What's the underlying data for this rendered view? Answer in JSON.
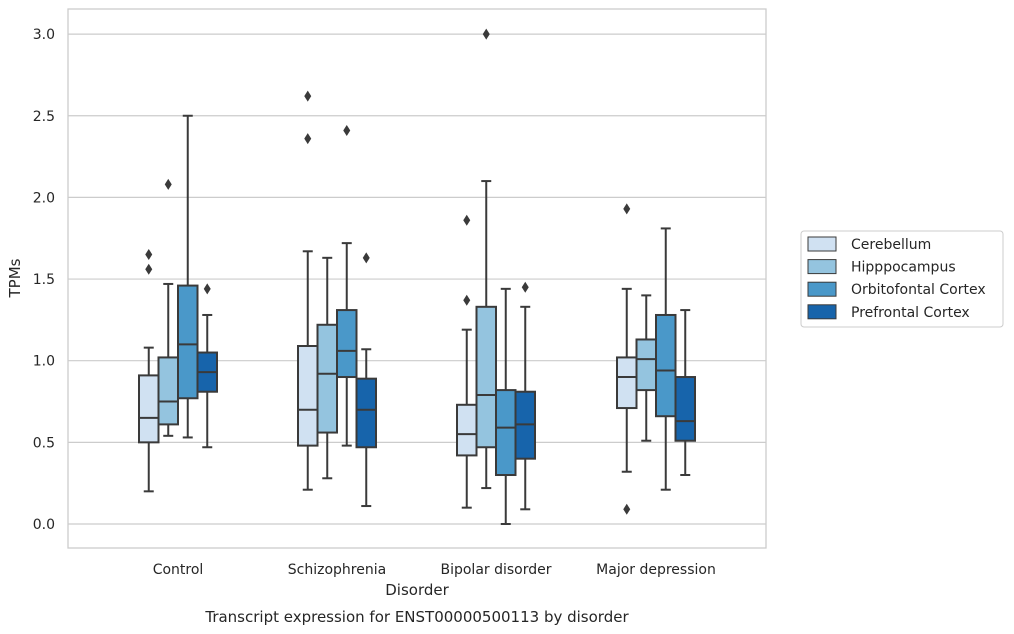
{
  "chart_data": {
    "type": "boxplot",
    "caption": "Transcript expression for ENST00000500113 by disorder",
    "xlabel": "Disorder",
    "ylabel": "TPMs",
    "ylim": [
      -0.15,
      3.15
    ],
    "yticks": [
      "0.0",
      "0.5",
      "1.0",
      "1.5",
      "2.0",
      "2.5",
      "3.0"
    ],
    "grid": true,
    "legend_position": "right, outside plot",
    "categories": [
      "Control",
      "Schizophrenia",
      "Bipolar disorder",
      "Major depression"
    ],
    "series": [
      {
        "name": "Cerebellum",
        "color": "#d0e1f2",
        "boxes": [
          {
            "whisker_low": 0.2,
            "q1": 0.5,
            "median": 0.65,
            "q3": 0.91,
            "whisker_high": 1.08,
            "outliers": [
              1.56,
              1.65
            ]
          },
          {
            "whisker_low": 0.21,
            "q1": 0.48,
            "median": 0.7,
            "q3": 1.09,
            "whisker_high": 1.67,
            "outliers": [
              2.36,
              2.62
            ]
          },
          {
            "whisker_low": 0.1,
            "q1": 0.42,
            "median": 0.55,
            "q3": 0.73,
            "whisker_high": 1.19,
            "outliers": [
              1.37,
              1.86
            ]
          },
          {
            "whisker_low": 0.32,
            "q1": 0.71,
            "median": 0.9,
            "q3": 1.02,
            "whisker_high": 1.44,
            "outliers": [
              0.09,
              1.93
            ]
          }
        ]
      },
      {
        "name": "Hipppocampus",
        "color": "#94c4df",
        "boxes": [
          {
            "whisker_low": 0.54,
            "q1": 0.61,
            "median": 0.75,
            "q3": 1.02,
            "whisker_high": 1.47,
            "outliers": [
              2.08
            ]
          },
          {
            "whisker_low": 0.28,
            "q1": 0.56,
            "median": 0.92,
            "q3": 1.22,
            "whisker_high": 1.63,
            "outliers": []
          },
          {
            "whisker_low": 0.22,
            "q1": 0.47,
            "median": 0.79,
            "q3": 1.33,
            "whisker_high": 2.1,
            "outliers": [
              3.0
            ]
          },
          {
            "whisker_low": 0.51,
            "q1": 0.82,
            "median": 1.01,
            "q3": 1.13,
            "whisker_high": 1.4,
            "outliers": []
          }
        ]
      },
      {
        "name": "Orbitofontal Cortex",
        "color": "#4a98c9",
        "boxes": [
          {
            "whisker_low": 0.53,
            "q1": 0.77,
            "median": 1.1,
            "q3": 1.46,
            "whisker_high": 2.5,
            "outliers": []
          },
          {
            "whisker_low": 0.48,
            "q1": 0.9,
            "median": 1.06,
            "q3": 1.31,
            "whisker_high": 1.72,
            "outliers": [
              2.41
            ]
          },
          {
            "whisker_low": 0.0,
            "q1": 0.3,
            "median": 0.59,
            "q3": 0.82,
            "whisker_high": 1.44,
            "outliers": []
          },
          {
            "whisker_low": 0.21,
            "q1": 0.66,
            "median": 0.94,
            "q3": 1.28,
            "whisker_high": 1.81,
            "outliers": []
          }
        ]
      },
      {
        "name": "Prefrontal Cortex",
        "color": "#1764ab",
        "boxes": [
          {
            "whisker_low": 0.47,
            "q1": 0.81,
            "median": 0.93,
            "q3": 1.05,
            "whisker_high": 1.28,
            "outliers": [
              1.44
            ]
          },
          {
            "whisker_low": 0.11,
            "q1": 0.47,
            "median": 0.7,
            "q3": 0.89,
            "whisker_high": 1.07,
            "outliers": [
              1.63
            ]
          },
          {
            "whisker_low": 0.09,
            "q1": 0.4,
            "median": 0.61,
            "q3": 0.81,
            "whisker_high": 1.33,
            "outliers": [
              1.45
            ]
          },
          {
            "whisker_low": 0.3,
            "q1": 0.51,
            "median": 0.63,
            "q3": 0.9,
            "whisker_high": 1.31,
            "outliers": []
          }
        ]
      }
    ]
  }
}
